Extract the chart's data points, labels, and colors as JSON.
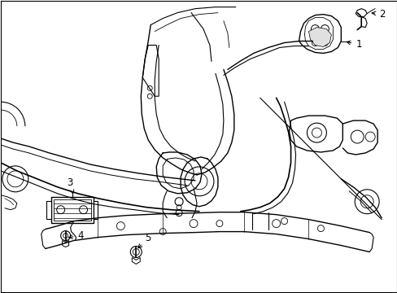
{
  "background_color": "#ffffff",
  "line_color": "#000000",
  "fig_width": 4.89,
  "fig_height": 3.6,
  "dpi": 100,
  "label_fontsize": 8.5,
  "border_lw": 0.8
}
